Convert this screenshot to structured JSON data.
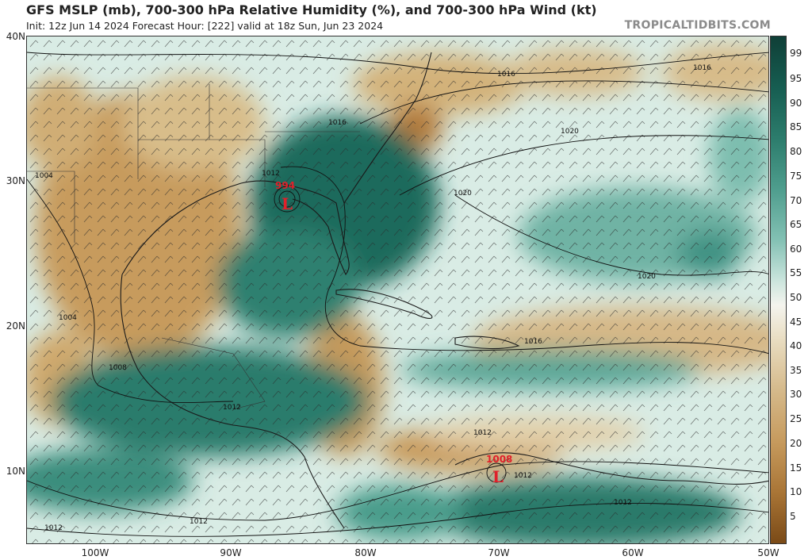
{
  "header": {
    "title": "GFS MSLP (mb), 700-300 hPa Relative Humidity (%), and 700-300 hPa Wind (kt)",
    "subtitle": "Init: 12z Jun 14 2024   Forecast Hour: [222]   valid at 18z Sun, Jun 23 2024",
    "credit": "TROPICALTIDBITS.COM"
  },
  "axes": {
    "lat_labels": [
      "40N",
      "30N",
      "20N",
      "10N"
    ],
    "lon_labels": [
      "100W",
      "90W",
      "80W",
      "70W",
      "60W",
      "50W"
    ]
  },
  "colorbar": {
    "labels": [
      "99",
      "95",
      "90",
      "85",
      "80",
      "75",
      "70",
      "65",
      "60",
      "55",
      "50",
      "45",
      "40",
      "35",
      "30",
      "25",
      "20",
      "15",
      "10",
      "5"
    ],
    "colors": {
      "very_moist": "#0f4f45",
      "moist": "#3f9283",
      "neutral": "#e8f2ee",
      "dry": "#d4b583",
      "very_dry": "#a56c2e"
    }
  },
  "map": {
    "lows": [
      {
        "pressure": "994",
        "symbol": "L"
      },
      {
        "pressure": "1008",
        "symbol": "L"
      }
    ],
    "isobar_labels": [
      "1016",
      "1016",
      "1016",
      "1012",
      "1004",
      "1020",
      "1020",
      "1020",
      "1004",
      "1016",
      "1008",
      "1012",
      "1012",
      "1012",
      "1012",
      "1012",
      "1012"
    ],
    "colors": {
      "low_marker": "#e0202a",
      "isobar": "#111111",
      "border": "#222222"
    }
  }
}
